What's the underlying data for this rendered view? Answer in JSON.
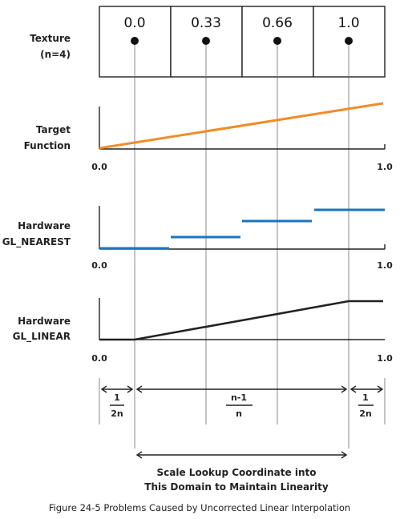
{
  "texture": {
    "label_line1": "Texture",
    "label_line2": "(n=4)",
    "cells": [
      "0.0",
      "0.33",
      "0.66",
      "1.0"
    ]
  },
  "rows": {
    "target_line1": "Target",
    "target_line2": "Function",
    "nearest_line1": "Hardware",
    "nearest_line2": "GL_NEAREST",
    "linear_line1": "Hardware",
    "linear_line2": "GL_LINEAR"
  },
  "ticks": {
    "start": "0.0",
    "end": "1.0"
  },
  "dimensions": {
    "left_num": "1",
    "left_den": "2n",
    "middle_num": "n-1",
    "middle_den": "n",
    "right_num": "1",
    "right_den": "2n"
  },
  "domain_note_line1": "Scale Lookup Coordinate into",
  "domain_note_line2": "This Domain to Maintain Linearity",
  "caption": "Figure 24-5 Problems Caused by Uncorrected Linear Interpolation",
  "colors": {
    "target_line": "#f28c28",
    "nearest_steps": "#1b75bb",
    "axis": "#222222",
    "guide": "#888888"
  }
}
